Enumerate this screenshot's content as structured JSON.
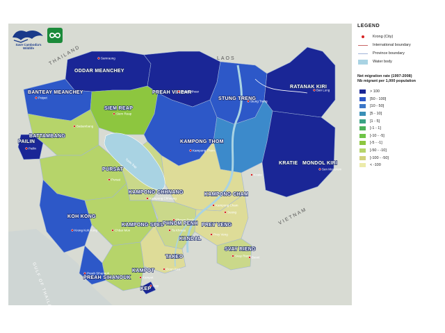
{
  "map": {
    "countries": {
      "thailand": "THAILAND",
      "laos": "LAOS",
      "vietnam": "VIETNAM"
    },
    "sea": "GULF OF THAILAND",
    "lake": "Tonle Sap",
    "provinces": [
      {
        "name": "ODDAR MEANCHEY",
        "color": "#1a2696"
      },
      {
        "name": "BANTEAY MEANCHEY",
        "color": "#2d58c8"
      },
      {
        "name": "PREAH VIHEAR",
        "color": "#1a2696"
      },
      {
        "name": "STUNG TRENG",
        "color": "#2d58c8"
      },
      {
        "name": "RATANAK KIRI",
        "color": "#1a2696"
      },
      {
        "name": "SIEM REAP",
        "color": "#8dc63f"
      },
      {
        "name": "BATTAMBANG",
        "color": "#b6d46a"
      },
      {
        "name": "PAILIN",
        "color": "#1a2696"
      },
      {
        "name": "KAMPONG THOM",
        "color": "#2d58c8"
      },
      {
        "name": "KRATIE",
        "color": "#3c8acb"
      },
      {
        "name": "MONDOL KIRI",
        "color": "#1a2696"
      },
      {
        "name": "PURSAT",
        "color": "#b6d46a"
      },
      {
        "name": "KAMPONG CHHNANG",
        "color": "#cad88a"
      },
      {
        "name": "KAMPONG CHAM",
        "color": "#dedc98"
      },
      {
        "name": "KOH KONG",
        "color": "#2d58c8"
      },
      {
        "name": "KAMPONG SPEU",
        "color": "#b6d46a"
      },
      {
        "name": "PHNOM PENH",
        "color": "#1a2696"
      },
      {
        "name": "KANDAL",
        "color": "#cad88a"
      },
      {
        "name": "PREY VENG",
        "color": "#dedc98"
      },
      {
        "name": "TAKEO",
        "color": "#dedc98"
      },
      {
        "name": "SVAY RIENG",
        "color": "#cad88a"
      },
      {
        "name": "KAMPOT",
        "color": "#b6d46a"
      },
      {
        "name": "PREAH SIHANOUK",
        "color": "#2d58c8"
      },
      {
        "name": "KEP",
        "color": "#1a2696"
      }
    ],
    "cities": [
      "Samraong",
      "Poipet",
      "Battambang",
      "Pailin",
      "Siem Reap",
      "Preah Vihear",
      "Stung Treng",
      "Ban Lung",
      "Kampong Thom",
      "Kratie",
      "Sen Monorom",
      "Pursat",
      "Kampong Chhnang",
      "Kampong Cham",
      "Suong",
      "Krong Koh Kong",
      "Chbar Mon",
      "Phnom Penh",
      "Ta Khmau",
      "Prey Veng",
      "Svay Rieng",
      "Bavet",
      "Doun Keo",
      "Kampot",
      "Kep",
      "Preah Sihanouk"
    ]
  },
  "logos": {
    "wildlife_name": "Save Cambodia's Wildlife"
  },
  "legend": {
    "title": "LEGEND",
    "items": [
      {
        "label": "Krong (City)",
        "icon": "red-dot-icon",
        "color": "#d62424"
      },
      {
        "label": "International boundary",
        "icon": "line-icon",
        "color": "#c86464"
      },
      {
        "label": "Province boundary",
        "icon": "line-icon",
        "color": "#9fb4d8"
      },
      {
        "label": "Water body",
        "icon": "water-swatch",
        "color": "#a9d3e3"
      }
    ],
    "ramp_title_1": "Net migration rate (1997-2008)",
    "ramp_title_2": "Nb migrant per 1,000 population",
    "classes": [
      {
        "label": "> 100",
        "color": "#1a2696"
      },
      {
        "label": "]50 - 100]",
        "color": "#2d58c8"
      },
      {
        "label": "]10 - 50]",
        "color": "#3c77c8"
      },
      {
        "label": "]5 - 10]",
        "color": "#3a8fb6"
      },
      {
        "label": "]1 - 5]",
        "color": "#3aa384"
      },
      {
        "label": "]-1 - 1]",
        "color": "#4cb258"
      },
      {
        "label": "]-10 - -5]",
        "color": "#6ec448"
      },
      {
        "label": "]-5 - -1]",
        "color": "#8dc63f"
      },
      {
        "label": "]-50 - -10]",
        "color": "#b6d46a"
      },
      {
        "label": "]-100 - -50]",
        "color": "#d2d27a"
      },
      {
        "label": "< -100",
        "color": "#ecebaa"
      }
    ]
  }
}
